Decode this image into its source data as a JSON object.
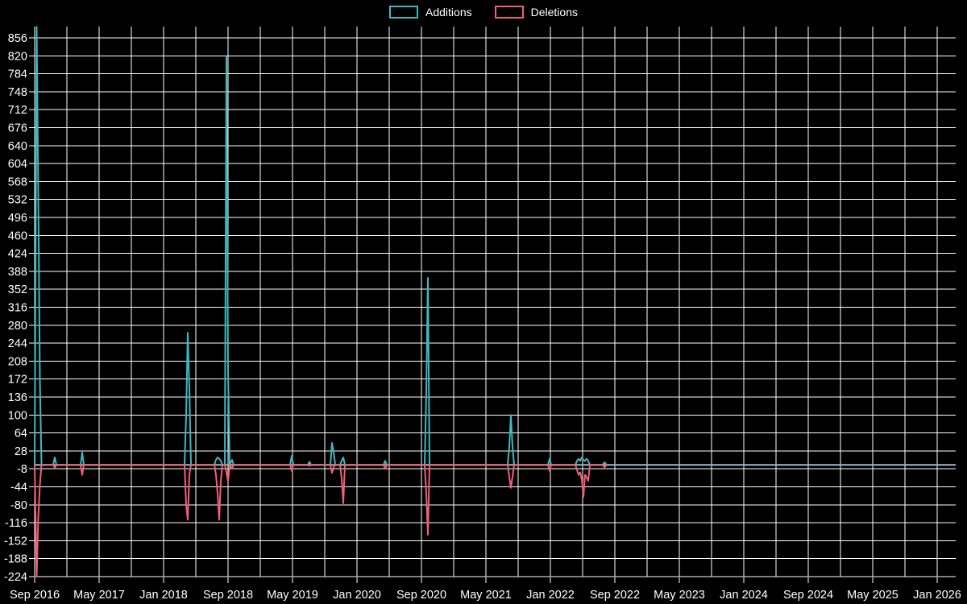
{
  "page": {
    "background": "#000000",
    "text_color": "#ffffff"
  },
  "legend": {
    "items": [
      {
        "label": "Additions",
        "color": "#3fb8c0"
      },
      {
        "label": "Deletions",
        "color": "#f25f78"
      }
    ]
  },
  "chart_data": {
    "type": "line",
    "title": "",
    "xlabel": "",
    "ylabel": "",
    "grid": true,
    "legend_position": "top-center",
    "colors": {
      "additions": "#3fb8c0",
      "deletions": "#f25f78",
      "gridline": "#ffffff",
      "zero_line": "#a0b8c8",
      "tick_text": "#ffffff",
      "background": "#000000"
    },
    "x_axis": {
      "start": "Sep 2016",
      "end": "Jan 2026",
      "months_per_labeled_tick": 8,
      "months_per_gridline": 4,
      "labels": [
        "Sep 2016",
        "May 2017",
        "Jan 2018",
        "Sep 2018",
        "May 2019",
        "Jan 2020",
        "Sep 2020",
        "May 2021",
        "Jan 2022",
        "Sep 2022",
        "May 2023",
        "Jan 2024",
        "Sep 2024",
        "May 2025",
        "Jan 2026"
      ]
    },
    "y_axis": {
      "min": -224,
      "max": 878,
      "tick_step": 36,
      "tick_labels": [
        856,
        820,
        784,
        748,
        712,
        676,
        640,
        604,
        568,
        532,
        496,
        460,
        424,
        388,
        352,
        316,
        280,
        244,
        208,
        172,
        136,
        100,
        64,
        28,
        -8,
        -44,
        -80,
        -116,
        -152,
        -188,
        -224
      ]
    },
    "series_names": [
      "Additions",
      "Deletions"
    ],
    "points": [
      {
        "date": "2016-09",
        "m": 0,
        "additions": 0,
        "deletions": 0
      },
      {
        "date": "2016-09",
        "m": 0.25,
        "additions": 878,
        "deletions": -224
      },
      {
        "date": "2016-09",
        "m": 0.45,
        "additions": 543,
        "deletions": -106
      },
      {
        "date": "2016-10",
        "m": 0.65,
        "additions": 170,
        "deletions": -40
      },
      {
        "date": "2016-10",
        "m": 0.85,
        "additions": 0,
        "deletions": 0
      },
      {
        "date": "2016-11",
        "m": 2.3,
        "additions": 0,
        "deletions": 0
      },
      {
        "date": "2016-11",
        "m": 2.5,
        "additions": 15,
        "deletions": -6
      },
      {
        "date": "2016-11",
        "m": 2.7,
        "additions": 0,
        "deletions": 0
      },
      {
        "date": "2017-02",
        "m": 5.7,
        "additions": 0,
        "deletions": 0
      },
      {
        "date": "2017-03",
        "m": 5.9,
        "additions": 25,
        "deletions": -20
      },
      {
        "date": "2017-03",
        "m": 6.1,
        "additions": 0,
        "deletions": 0
      },
      {
        "date": "2018-03",
        "m": 18.6,
        "additions": 0,
        "deletions": 0
      },
      {
        "date": "2018-03",
        "m": 18.8,
        "additions": 100,
        "deletions": -80
      },
      {
        "date": "2018-04",
        "m": 19.0,
        "additions": 265,
        "deletions": -110
      },
      {
        "date": "2018-04",
        "m": 19.2,
        "additions": 150,
        "deletions": -20
      },
      {
        "date": "2018-04",
        "m": 19.4,
        "additions": 0,
        "deletions": 0
      },
      {
        "date": "2018-07",
        "m": 22.3,
        "additions": 0,
        "deletions": 0
      },
      {
        "date": "2018-07",
        "m": 22.5,
        "additions": 10,
        "deletions": -20
      },
      {
        "date": "2018-07",
        "m": 22.7,
        "additions": 15,
        "deletions": -57
      },
      {
        "date": "2018-08",
        "m": 22.9,
        "additions": 12,
        "deletions": -110
      },
      {
        "date": "2018-08",
        "m": 23.1,
        "additions": 8,
        "deletions": -33
      },
      {
        "date": "2018-08",
        "m": 23.3,
        "additions": 0,
        "deletions": 0
      },
      {
        "date": "2018-08",
        "m": 23.6,
        "additions": 0,
        "deletions": 0
      },
      {
        "date": "2018-08",
        "m": 23.8,
        "additions": 820,
        "deletions": -15
      },
      {
        "date": "2018-09",
        "m": 24.0,
        "additions": 190,
        "deletions": -33
      },
      {
        "date": "2018-09",
        "m": 24.2,
        "additions": 0,
        "deletions": 0
      },
      {
        "date": "2018-09",
        "m": 24.5,
        "additions": 10,
        "deletions": -8
      },
      {
        "date": "2018-09",
        "m": 24.7,
        "additions": 0,
        "deletions": 0
      },
      {
        "date": "2019-04",
        "m": 31.7,
        "additions": 0,
        "deletions": 0
      },
      {
        "date": "2019-04",
        "m": 31.9,
        "additions": 18,
        "deletions": -12
      },
      {
        "date": "2019-05",
        "m": 32.1,
        "additions": 0,
        "deletions": 0
      },
      {
        "date": "2019-06",
        "m": 33.9,
        "additions": 0,
        "deletions": 0
      },
      {
        "date": "2019-07",
        "m": 34.1,
        "additions": 6,
        "deletions": -2
      },
      {
        "date": "2019-07",
        "m": 34.3,
        "additions": 0,
        "deletions": 0
      },
      {
        "date": "2019-09",
        "m": 36.7,
        "additions": 0,
        "deletions": 0
      },
      {
        "date": "2019-09",
        "m": 36.9,
        "additions": 44,
        "deletions": -16
      },
      {
        "date": "2019-10",
        "m": 37.1,
        "additions": 25,
        "deletions": -5
      },
      {
        "date": "2019-10",
        "m": 37.3,
        "additions": 0,
        "deletions": 0
      },
      {
        "date": "2019-10",
        "m": 37.9,
        "additions": 0,
        "deletions": 0
      },
      {
        "date": "2019-11",
        "m": 38.1,
        "additions": 8,
        "deletions": -28
      },
      {
        "date": "2019-11",
        "m": 38.3,
        "additions": 15,
        "deletions": -77
      },
      {
        "date": "2019-11",
        "m": 38.5,
        "additions": 0,
        "deletions": 0
      },
      {
        "date": "2020-04",
        "m": 43.3,
        "additions": 0,
        "deletions": 0
      },
      {
        "date": "2020-04",
        "m": 43.5,
        "additions": 8,
        "deletions": -8
      },
      {
        "date": "2020-04",
        "m": 43.7,
        "additions": 0,
        "deletions": 0
      },
      {
        "date": "2020-09",
        "m": 48.4,
        "additions": 0,
        "deletions": 0
      },
      {
        "date": "2020-09",
        "m": 48.6,
        "additions": 146,
        "deletions": -57
      },
      {
        "date": "2020-09",
        "m": 48.8,
        "additions": 375,
        "deletions": -140
      },
      {
        "date": "2020-10",
        "m": 49.0,
        "additions": 0,
        "deletions": 0
      },
      {
        "date": "2021-07",
        "m": 58.7,
        "additions": 0,
        "deletions": 0
      },
      {
        "date": "2021-07",
        "m": 58.9,
        "additions": 36,
        "deletions": -24
      },
      {
        "date": "2021-08",
        "m": 59.1,
        "additions": 100,
        "deletions": -46
      },
      {
        "date": "2021-08",
        "m": 59.3,
        "additions": 36,
        "deletions": -24
      },
      {
        "date": "2021-08",
        "m": 59.5,
        "additions": 0,
        "deletions": 0
      },
      {
        "date": "2021-12",
        "m": 63.7,
        "additions": 0,
        "deletions": 0
      },
      {
        "date": "2021-12",
        "m": 63.9,
        "additions": 12,
        "deletions": -12
      },
      {
        "date": "2022-01",
        "m": 64.1,
        "additions": 0,
        "deletions": 0
      },
      {
        "date": "2022-04",
        "m": 67.1,
        "additions": 0,
        "deletions": 0
      },
      {
        "date": "2022-04",
        "m": 67.3,
        "additions": 8,
        "deletions": -10
      },
      {
        "date": "2022-04",
        "m": 67.5,
        "additions": 12,
        "deletions": -20
      },
      {
        "date": "2022-05",
        "m": 67.7,
        "additions": 8,
        "deletions": -15
      },
      {
        "date": "2022-05",
        "m": 67.9,
        "additions": 15,
        "deletions": -30
      },
      {
        "date": "2022-05",
        "m": 68.1,
        "additions": 10,
        "deletions": -64
      },
      {
        "date": "2022-05",
        "m": 68.3,
        "additions": 8,
        "deletions": -20
      },
      {
        "date": "2022-06",
        "m": 68.5,
        "additions": 12,
        "deletions": -25
      },
      {
        "date": "2022-06",
        "m": 68.7,
        "additions": 8,
        "deletions": -32
      },
      {
        "date": "2022-06",
        "m": 68.9,
        "additions": 0,
        "deletions": 0
      },
      {
        "date": "2022-07",
        "m": 70.5,
        "additions": 0,
        "deletions": 0
      },
      {
        "date": "2022-08",
        "m": 70.7,
        "additions": 5,
        "deletions": -5
      },
      {
        "date": "2022-08",
        "m": 71.0,
        "additions": 0,
        "deletions": 0
      }
    ]
  }
}
